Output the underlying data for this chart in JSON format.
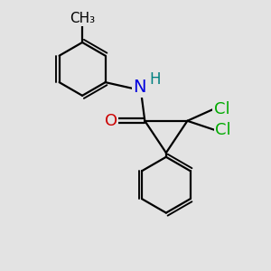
{
  "bg_color": "#e3e3e3",
  "bond_color": "#000000",
  "bond_width": 1.6,
  "atom_colors": {
    "O": "#cc0000",
    "N": "#0000dd",
    "H": "#008080",
    "Cl": "#00aa00",
    "C": "#000000"
  },
  "font_size": 13
}
